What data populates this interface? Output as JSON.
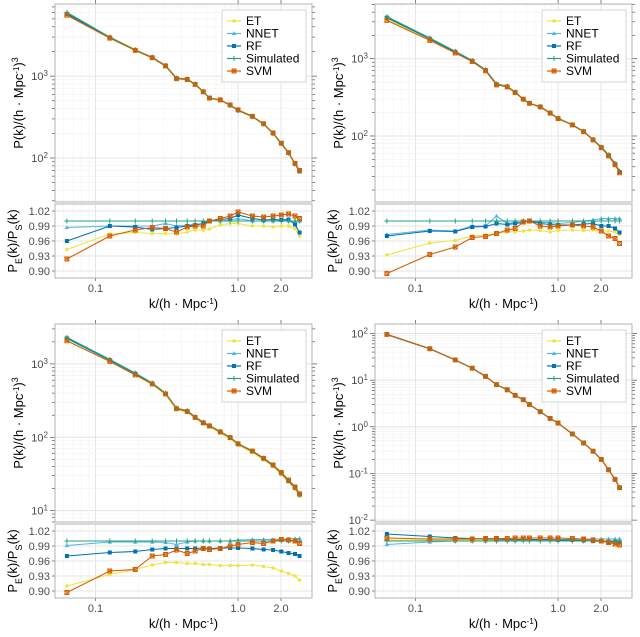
{
  "chart_data": {
    "type": "line",
    "layout": "2x2 grid of panels, each with a main log-log power spectrum plot and a ratio subplot below",
    "legend_placement": "top-right",
    "grid": true,
    "series_names": [
      "ET",
      "NNET",
      "RF",
      "Simulated",
      "SVM"
    ],
    "colors": {
      "ET": "#F0E442",
      "NNET": "#56B4E9",
      "RF": "#0072B2",
      "Simulated": "#1FA57E",
      "SVM": "#D55E00"
    },
    "markers": {
      "ET": "circle",
      "NNET": "triangle",
      "RF": "square",
      "Simulated": "plus",
      "SVM": "boxed-x"
    },
    "x_scale": "log",
    "xlim": [
      0.052,
      3.3
    ],
    "x_ticks": [
      "0.1",
      "1.0",
      "2.0"
    ],
    "x_tick_values": [
      0.1,
      1.0,
      2.0
    ],
    "xlabel": {
      "main": "k/(h · Mpc",
      "sup": "-1",
      "close": ")"
    },
    "ylabel_main": {
      "main": "P(k)/(h · Mpc",
      "sup": "-1",
      "close": ")",
      "sup2": "3"
    },
    "ylabel_ratio": {
      "p1": "P",
      "sub1": "E",
      "p2": "(k)/P",
      "sub2": "S",
      "p3": "(k)"
    },
    "ratio_ylim": [
      0.886,
      1.034
    ],
    "ratio_ticks": [
      "1.02",
      "0.99",
      "0.96",
      "0.93",
      "0.90"
    ],
    "k": [
      0.063,
      0.126,
      0.19,
      0.25,
      0.31,
      0.37,
      0.44,
      0.5,
      0.57,
      0.63,
      0.75,
      0.88,
      1.0,
      1.26,
      1.51,
      1.76,
      2.01,
      2.26,
      2.51,
      2.7
    ],
    "panels": [
      {
        "position": "top-left",
        "main_ylim": [
          29,
          7600
        ],
        "main_y_ticks": [
          {
            "base": "10",
            "exp": "2"
          },
          {
            "base": "10",
            "exp": "3"
          }
        ],
        "simulated_pk": [
          6000,
          3000,
          2100,
          1700,
          1350,
          950,
          920,
          800,
          650,
          540,
          510,
          440,
          380,
          320,
          260,
          200,
          150,
          115,
          85,
          70
        ],
        "ratios": {
          "ET": [
            0.943,
            0.974,
            0.977,
            0.975,
            0.975,
            0.974,
            0.978,
            0.982,
            0.982,
            0.984,
            0.992,
            0.995,
            0.995,
            0.99,
            0.99,
            0.988,
            0.99,
            0.99,
            0.985,
            0.97
          ],
          "NNET": [
            0.987,
            0.99,
            0.99,
            0.99,
            0.995,
            0.99,
            0.992,
            0.993,
            0.995,
            1.0,
            1.0,
            1.002,
            1.005,
            1.0,
            1.0,
            1.0,
            1.002,
            1.0,
            1.0,
            1.0
          ],
          "RF": [
            0.96,
            0.99,
            0.988,
            0.983,
            0.985,
            0.987,
            0.99,
            0.992,
            0.995,
            1.0,
            1.003,
            1.005,
            1.012,
            1.005,
            1.002,
            1.003,
            1.002,
            1.003,
            0.993,
            0.977
          ],
          "Simulated": [
            1,
            1,
            1,
            1,
            1,
            1,
            1,
            1,
            1,
            1,
            1,
            1,
            1,
            1,
            1,
            1,
            1,
            1,
            1,
            1
          ],
          "SVM": [
            0.924,
            0.97,
            0.982,
            0.987,
            0.985,
            0.978,
            0.988,
            0.99,
            0.99,
            1.0,
            1.005,
            1.01,
            1.018,
            1.01,
            1.008,
            1.01,
            1.012,
            1.014,
            1.01,
            1.005
          ]
        }
      },
      {
        "position": "top-right",
        "main_ylim": [
          14,
          5100
        ],
        "main_y_ticks": [
          {
            "base": "10",
            "exp": "2"
          },
          {
            "base": "10",
            "exp": "3"
          }
        ],
        "simulated_pk": [
          3500,
          1850,
          1250,
          950,
          720,
          470,
          440,
          370,
          300,
          265,
          240,
          200,
          170,
          140,
          115,
          90,
          72,
          57,
          44,
          35
        ],
        "ratios": {
          "ET": [
            0.932,
            0.956,
            0.961,
            0.97,
            0.972,
            0.975,
            0.978,
            0.978,
            0.98,
            0.982,
            0.981,
            0.978,
            0.981,
            0.982,
            0.981,
            0.982,
            0.98,
            0.98,
            0.978,
            0.973
          ],
          "NNET": [
            0.973,
            0.982,
            0.98,
            0.99,
            0.99,
            1.01,
            0.995,
            0.997,
            0.997,
            1.0,
            0.997,
            0.997,
            0.995,
            0.997,
            1.0,
            1.002,
            1.005,
            1.005,
            1.005,
            1.005
          ],
          "RF": [
            0.97,
            0.98,
            0.979,
            0.988,
            0.989,
            0.995,
            0.993,
            0.995,
            0.997,
            1.0,
            0.995,
            0.993,
            0.992,
            0.992,
            0.994,
            0.995,
            0.99,
            0.99,
            0.985,
            0.977
          ],
          "Simulated": [
            1,
            1,
            1,
            1,
            1,
            1,
            1,
            1,
            1,
            1,
            1,
            1,
            1,
            1,
            1,
            1,
            1,
            1,
            1,
            1
          ],
          "SVM": [
            0.895,
            0.933,
            0.948,
            0.967,
            0.969,
            0.975,
            0.982,
            0.985,
            0.998,
            1.0,
            0.99,
            0.988,
            0.99,
            0.992,
            0.99,
            0.988,
            0.98,
            0.97,
            0.965,
            0.955
          ]
        }
      },
      {
        "position": "bottom-left",
        "main_ylim": [
          7,
          3500
        ],
        "main_y_ticks": [
          {
            "base": "10",
            "exp": "1"
          },
          {
            "base": "10",
            "exp": "2"
          },
          {
            "base": "10",
            "exp": "3"
          }
        ],
        "simulated_pk": [
          2300,
          1150,
          750,
          550,
          400,
          250,
          230,
          190,
          160,
          145,
          120,
          100,
          82,
          65,
          52,
          42,
          33,
          26,
          21,
          17
        ],
        "ratios": {
          "ET": [
            0.91,
            0.933,
            0.943,
            0.952,
            0.957,
            0.957,
            0.955,
            0.955,
            0.953,
            0.953,
            0.951,
            0.951,
            0.951,
            0.952,
            0.949,
            0.946,
            0.94,
            0.935,
            0.93,
            0.922
          ],
          "NNET": [
            0.991,
            0.998,
            0.998,
            0.998,
            0.997,
            0.993,
            0.998,
            1.0,
            1.0,
            1.0,
            1.0,
            1.0,
            1.002,
            1.003,
            1.003,
            1.003,
            1.004,
            1.004,
            1.005,
            1.005
          ],
          "RF": [
            0.97,
            0.977,
            0.979,
            0.983,
            0.985,
            0.985,
            0.985,
            0.985,
            0.986,
            0.985,
            0.986,
            0.986,
            0.986,
            0.985,
            0.983,
            0.982,
            0.979,
            0.976,
            0.974,
            0.97
          ],
          "Simulated": [
            1,
            1,
            1,
            1,
            1,
            1,
            1,
            1,
            1,
            1,
            1,
            1,
            1,
            1,
            1,
            1,
            1,
            1,
            1,
            1
          ],
          "SVM": [
            0.897,
            0.94,
            0.943,
            0.97,
            0.973,
            0.982,
            0.975,
            0.98,
            0.985,
            0.983,
            0.985,
            0.99,
            0.993,
            0.997,
            0.995,
            1.0,
            1.003,
            1.002,
            1.0,
            0.995
          ]
        }
      },
      {
        "position": "bottom-right",
        "main_ylim": [
          0.0091,
          160
        ],
        "main_y_ticks": [
          {
            "base": "10",
            "exp": "-2"
          },
          {
            "base": "10",
            "exp": "-1"
          },
          {
            "base": "10",
            "exp": "0"
          },
          {
            "base": "10",
            "exp": "1"
          },
          {
            "base": "10",
            "exp": "2"
          }
        ],
        "simulated_pk": [
          95,
          47,
          27,
          18,
          12,
          8,
          6.2,
          4.7,
          3.8,
          3.0,
          2.1,
          1.5,
          1.2,
          0.7,
          0.45,
          0.3,
          0.2,
          0.12,
          0.075,
          0.05
        ],
        "ratios": {
          "ET": [
            1.002,
            1.002,
            1.002,
            1.002,
            1.002,
            1.002,
            1.002,
            1.002,
            1.002,
            1.002,
            1.002,
            1.002,
            1.002,
            1.001,
            1.001,
            1.0,
            1.0,
            0.999,
            0.998,
            0.998
          ],
          "NNET": [
            0.993,
            0.998,
            1.0,
            1.0,
            1.0,
            1.001,
            1.001,
            1.001,
            1.002,
            1.002,
            1.002,
            1.002,
            1.003,
            1.003,
            1.004,
            1.004,
            1.004,
            1.004,
            1.004,
            1.004
          ],
          "RF": [
            1.014,
            1.009,
            1.006,
            1.005,
            1.004,
            1.004,
            1.003,
            1.003,
            1.003,
            1.003,
            1.003,
            1.003,
            1.002,
            1.002,
            1.001,
            1.0,
            0.999,
            0.998,
            0.998,
            0.997
          ],
          "Simulated": [
            1,
            1,
            1,
            1,
            1,
            1,
            1,
            1,
            1,
            1,
            1,
            1,
            1,
            1,
            1,
            1,
            1,
            1,
            1,
            1
          ],
          "SVM": [
            1.006,
            1.004,
            1.004,
            1.004,
            1.005,
            1.005,
            1.005,
            1.006,
            1.006,
            1.006,
            1.006,
            1.006,
            1.006,
            1.005,
            1.004,
            1.002,
            1.0,
            0.997,
            0.994,
            0.992
          ]
        }
      }
    ]
  }
}
